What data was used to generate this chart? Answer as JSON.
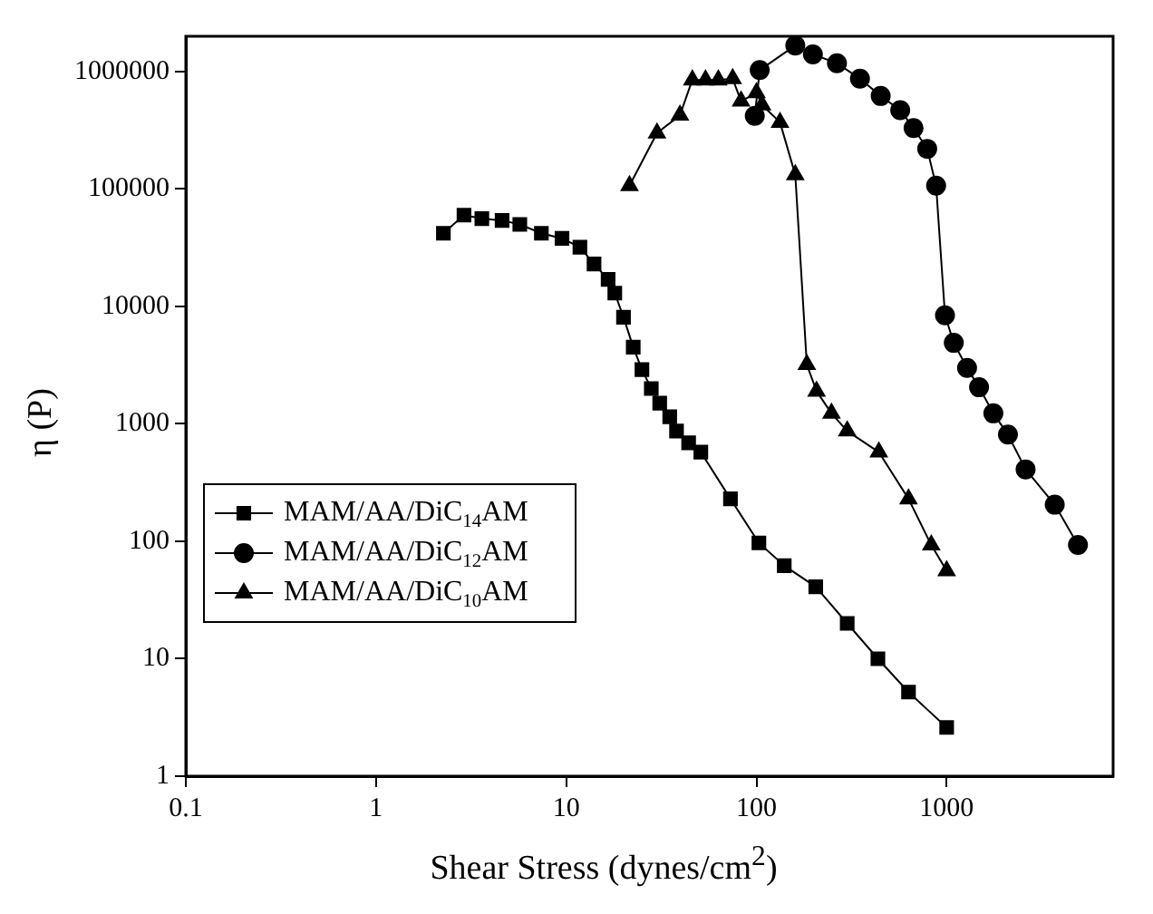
{
  "chart_data": {
    "type": "line",
    "xlabel": "Shear Stress (dynes/cm$^{2}$)",
    "ylabel": "η (P)",
    "log": "xy",
    "grid": false,
    "legend": "bottom left",
    "line_style": "solid",
    "xlim": [
      0.1,
      7500
    ],
    "xticks": [
      0.1,
      1,
      10,
      100,
      1000
    ],
    "ylim": [
      1,
      2000000
    ],
    "yticks": [
      1,
      10,
      100,
      1000,
      10000,
      100000,
      1000000
    ],
    "series": [
      {
        "name": "MAM/AA/DiC$_{14}$AM",
        "color": "#000000",
        "marker": "square",
        "x": [
          2.26,
          2.9,
          3.6,
          4.6,
          5.7,
          7.4,
          9.5,
          11.8,
          14,
          16.6,
          18,
          20,
          22.5,
          25,
          28,
          31,
          35,
          38,
          44,
          51,
          73,
          103,
          140,
          205,
          300,
          435,
          630,
          1000
        ],
        "values": [
          42000,
          60000,
          56000,
          54000,
          50000,
          42000,
          38000,
          32000,
          23000,
          17000,
          13000,
          8100,
          4500,
          2900,
          2000,
          1500,
          1150,
          870,
          690,
          575,
          230,
          97,
          62,
          41,
          20,
          10,
          5.2,
          2.6
        ]
      },
      {
        "name": "MAM/AA/DiC$_{12}$AM",
        "color": "#000000",
        "marker": "circle",
        "x": [
          98,
          104,
          160,
          198,
          265,
          350,
          450,
          570,
          670,
          790,
          880,
          980,
          1090,
          1280,
          1480,
          1760,
          2100,
          2600,
          3700,
          4900
        ],
        "values": [
          420000,
          1030000,
          1670000,
          1400000,
          1180000,
          870000,
          620000,
          470000,
          330000,
          220000,
          107000,
          8400,
          4900,
          3000,
          2050,
          1230,
          810,
          410,
          205,
          93
        ]
      },
      {
        "name": "MAM/AA/DiC$_{10}$AM",
        "color": "#000000",
        "marker": "triangle",
        "x": [
          21.5,
          30,
          39.6,
          46,
          54,
          63,
          75,
          83,
          100,
          107,
          133,
          160,
          184,
          207,
          248,
          300,
          440,
          630,
          830,
          1000
        ],
        "values": [
          107000,
          300000,
          425000,
          850000,
          850000,
          850000,
          870000,
          560000,
          660000,
          520000,
          370000,
          132000,
          3200,
          1900,
          1230,
          870,
          575,
          230,
          93,
          56
        ]
      }
    ]
  }
}
